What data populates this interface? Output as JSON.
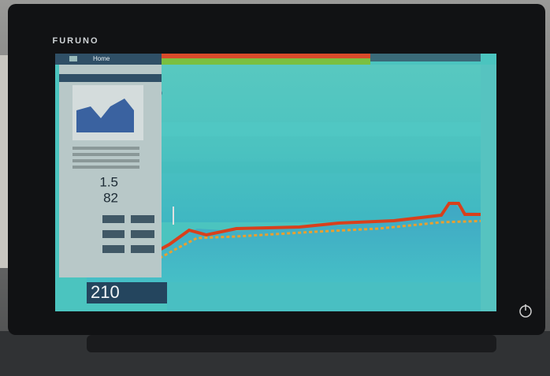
{
  "device": {
    "brand": "FURUNO"
  },
  "screen": {
    "menu_button": "Home",
    "readouts": {
      "depth": "1.5",
      "temperature": "82",
      "range": "210"
    }
  }
}
